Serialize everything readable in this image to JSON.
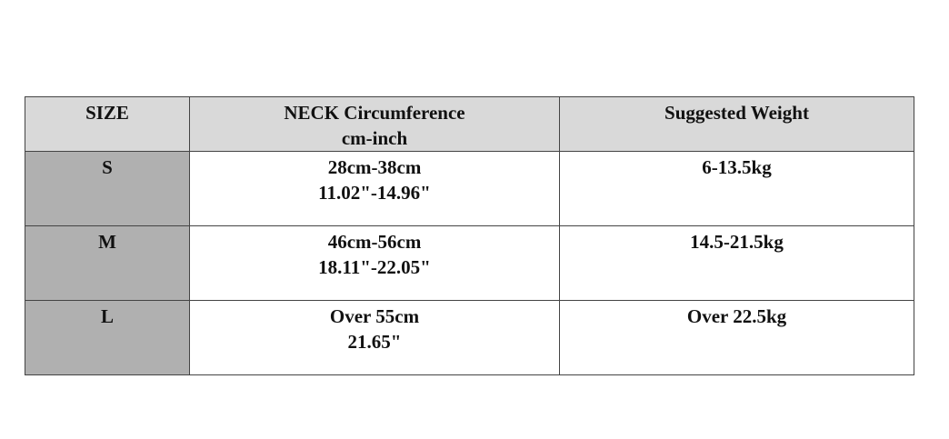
{
  "header": {
    "size": "SIZE",
    "neck": [
      "NECK Circumference",
      "cm-inch"
    ],
    "weight": "Suggested Weight"
  },
  "rows": [
    {
      "size": "S",
      "neck": [
        "28cm-38cm",
        "11.02\"-14.96\""
      ],
      "weight": "6-13.5kg"
    },
    {
      "size": "M",
      "neck": [
        "46cm-56cm",
        "18.11\"-22.05\""
      ],
      "weight": "14.5-21.5kg"
    },
    {
      "size": "L",
      "neck": [
        "Over 55cm",
        "21.65\""
      ],
      "weight": "Over 22.5kg"
    }
  ],
  "colors": {
    "header_bg": "#d9d9d9",
    "size_col_bg": "#b0b0b0",
    "border": "#444444"
  }
}
